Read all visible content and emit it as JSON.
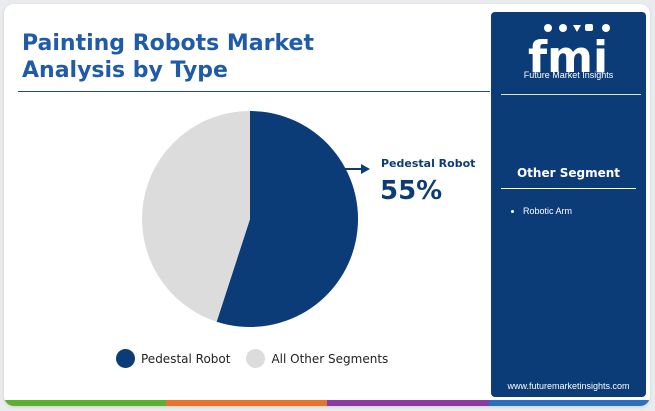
{
  "title_line1": "Painting Robots Market",
  "title_line2": "Analysis by Type",
  "chart_data": {
    "type": "pie",
    "slices": [
      {
        "label": "Pedestal Robot",
        "value": 55,
        "color": "#0c3c78"
      },
      {
        "label": "All Other Segments",
        "value": 45,
        "color": "#dcdcdc"
      }
    ],
    "callout": {
      "label": "Pedestal Robot",
      "value": "55%"
    },
    "legend_position": "bottom"
  },
  "brand": {
    "logo_text": "fmi",
    "name": "Future Market Insights",
    "url": "www.futuremarketinsights.com",
    "primary_color": "#0c3c78",
    "accent_color": "#1f5ba8"
  },
  "side_panel": {
    "heading": "Other Segment",
    "items": [
      "Robotic Arm"
    ]
  },
  "bottom_bar_colors": [
    "#5bb030",
    "#e8742a",
    "#8a3aa0",
    "#2a6fc0"
  ]
}
